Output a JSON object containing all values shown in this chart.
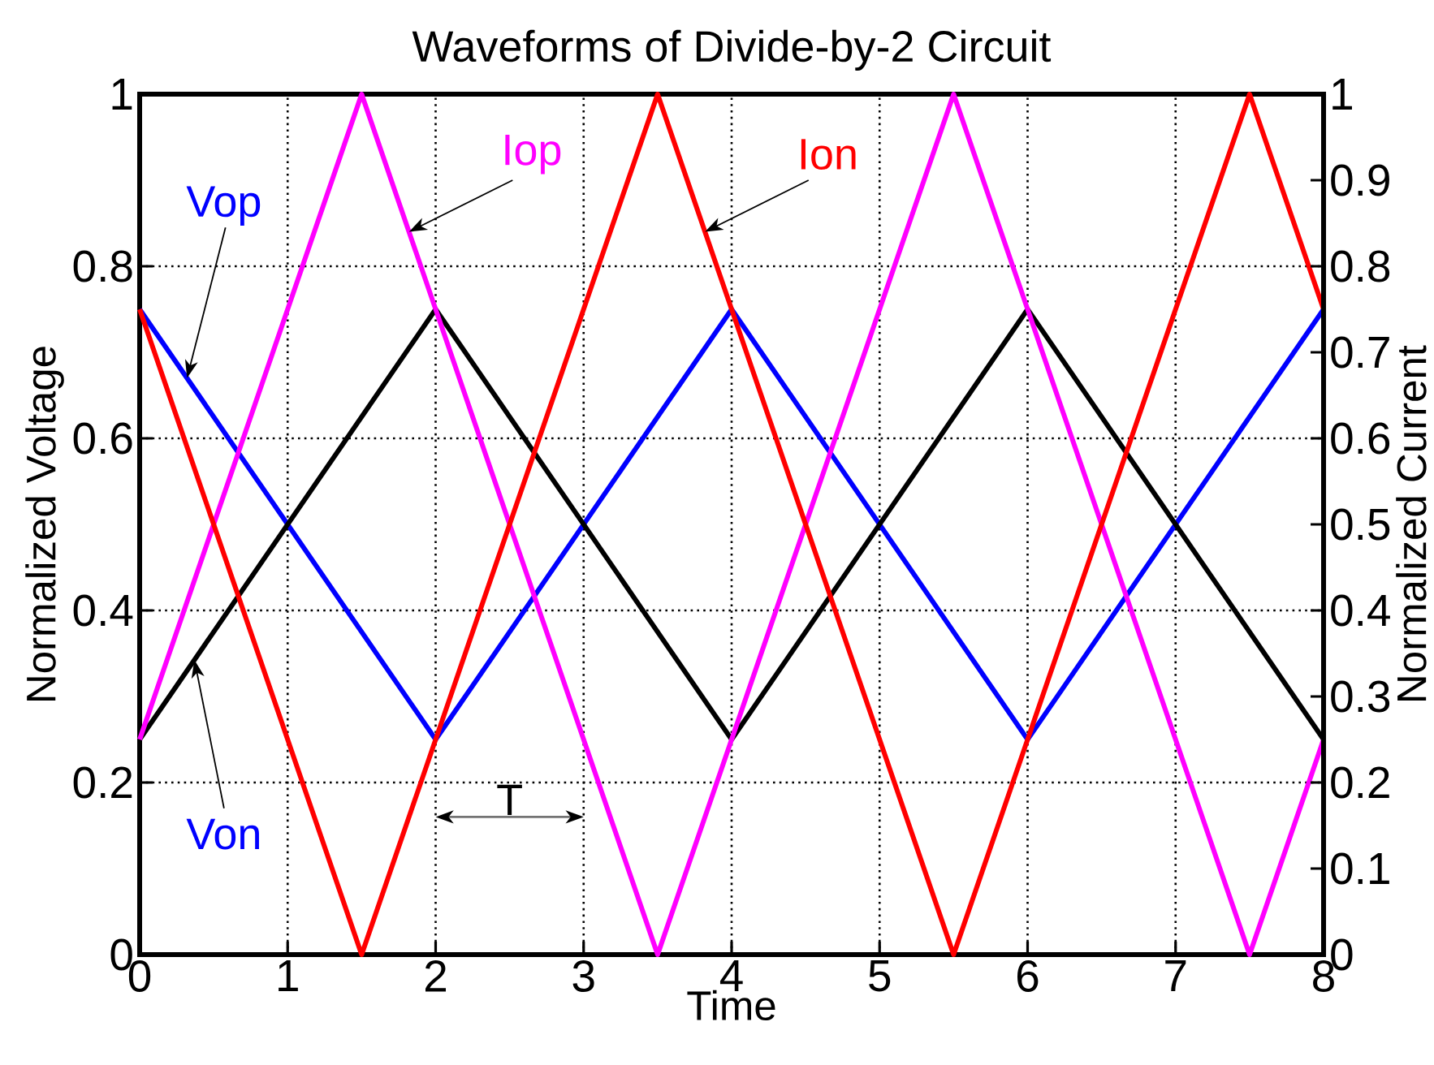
{
  "chart_data": {
    "type": "line",
    "title": "Waveforms of Divide-by-2 Circuit",
    "xlabel": "Time",
    "ylabel": "Normalized Voltage",
    "y2label": "Normalized Current",
    "xlim": [
      0,
      8
    ],
    "xticks": [
      0,
      1,
      2,
      3,
      4,
      5,
      6,
      7,
      8
    ],
    "ylim": [
      0,
      1
    ],
    "yticks": [
      0,
      0.2,
      0.4,
      0.6,
      0.8,
      1
    ],
    "y2lim": [
      0,
      1
    ],
    "y2ticks": [
      0,
      0.1,
      0.2,
      0.3,
      0.4,
      0.5,
      0.6,
      0.7,
      0.8,
      0.9,
      1
    ],
    "grid": true,
    "series": [
      {
        "name": "Vop",
        "color": "#0000ff",
        "x": [
          0,
          2,
          4,
          6,
          8
        ],
        "values": [
          0.75,
          0.25,
          0.75,
          0.25,
          0.75
        ]
      },
      {
        "name": "Von",
        "color": "#000000",
        "x": [
          0,
          2,
          4,
          6,
          8
        ],
        "values": [
          0.25,
          0.75,
          0.25,
          0.75,
          0.25
        ]
      },
      {
        "name": "Iop",
        "color": "#ff00ff",
        "axis": "y2",
        "x": [
          0,
          1.5,
          3.5,
          5.5,
          7.5,
          8
        ],
        "values": [
          0.25,
          1,
          0,
          1,
          0,
          0.25
        ]
      },
      {
        "name": "Ion",
        "color": "#ff0000",
        "axis": "y2",
        "x": [
          0,
          1.5,
          3.5,
          5.5,
          7.5,
          8
        ],
        "values": [
          0.75,
          0,
          1,
          0,
          1,
          0.75
        ]
      }
    ],
    "annotations": [
      "T"
    ]
  }
}
